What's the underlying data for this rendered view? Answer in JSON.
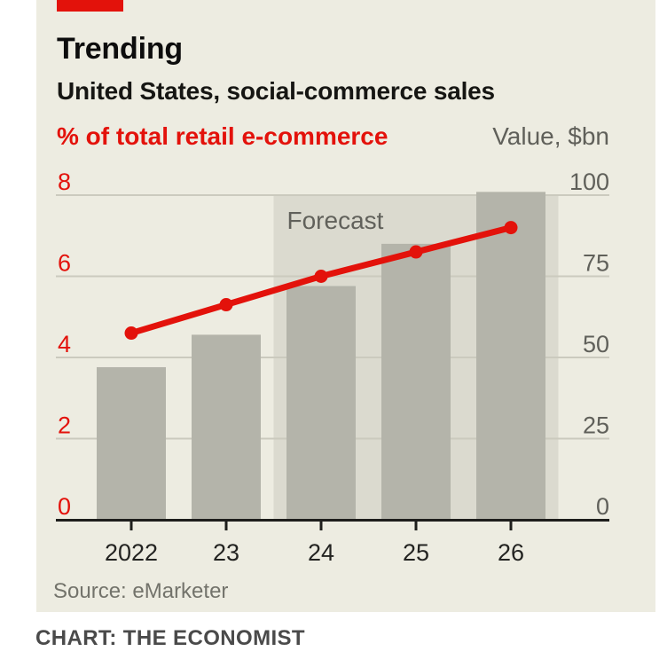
{
  "page": {
    "background": "#ffffff",
    "credit": "CHART: THE ECONOMIST"
  },
  "card": {
    "background": "#edece1",
    "tab_color": "#e3120b",
    "title": "Trending",
    "subtitle": "United States, social-commerce sales",
    "source": "Source: eMarketer"
  },
  "chart_data": {
    "type": "bar",
    "subtype": "combo-bar-line-dual-axis",
    "title": "Trending",
    "subtitle": "United States, social-commerce sales",
    "categories": [
      "2022",
      "23",
      "24",
      "25",
      "26"
    ],
    "series": [
      {
        "name": "Value, $bn",
        "type": "bar",
        "axis": "right",
        "values": [
          47,
          57,
          72,
          85,
          101
        ],
        "color": "#b4b4aa"
      },
      {
        "name": "% of total retail e-commerce",
        "type": "line",
        "axis": "left",
        "values": [
          4.6,
          5.3,
          6.0,
          6.6,
          7.2
        ],
        "color": "#e3120b"
      }
    ],
    "left_axis": {
      "label": "% of total retail e-commerce",
      "range": [
        0,
        8
      ],
      "ticks": [
        0,
        2,
        4,
        6,
        8
      ],
      "color": "#e3120b"
    },
    "right_axis": {
      "label": "Value, $bn",
      "range": [
        0,
        100
      ],
      "ticks": [
        0,
        25,
        50,
        75,
        100
      ],
      "color": "#60605a"
    },
    "forecast": {
      "label": "Forecast",
      "start_category_index": 2,
      "fill": "#dbdacf",
      "label_color": "#61615b"
    },
    "grid": true,
    "gridline_color": "#cbcabe",
    "axis_line_color": "#1e1e1c",
    "tick_label_color": "#232321",
    "legend_position": "none",
    "source": "Source: eMarketer"
  }
}
